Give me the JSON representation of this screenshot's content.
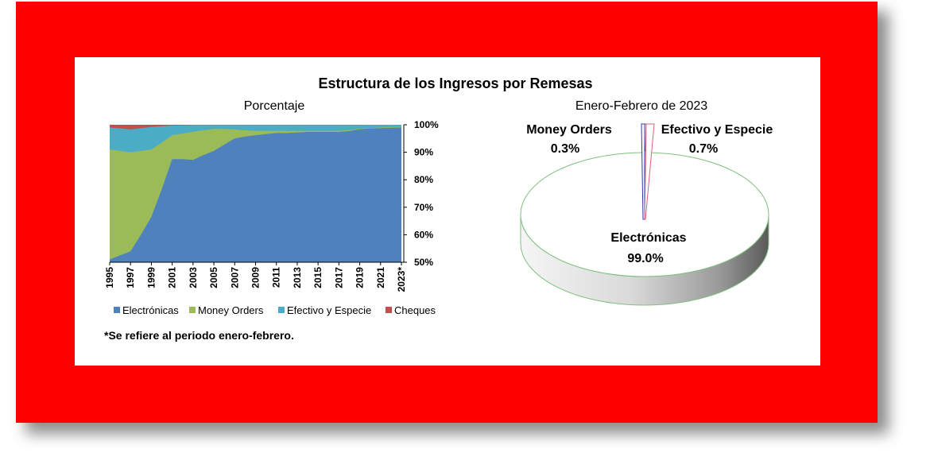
{
  "page": {
    "main_title": "Estructura de los Ingresos por Remesas",
    "footnote": "*Se refiere al periodo enero-febrero.",
    "frame_color": "#ff0000"
  },
  "chart_data": [
    {
      "type": "area",
      "title": "Porcentaje",
      "x": [
        "1995",
        "1996",
        "1997",
        "1998",
        "1999",
        "2000",
        "2001",
        "2002",
        "2003",
        "2004",
        "2005",
        "2006",
        "2007",
        "2008",
        "2009",
        "2010",
        "2011",
        "2012",
        "2013",
        "2014",
        "2015",
        "2016",
        "2017",
        "2018",
        "2019",
        "2020",
        "2021",
        "2022",
        "2023*"
      ],
      "x_tick_labels": [
        "1995",
        "1997",
        "1999",
        "2001",
        "2003",
        "2005",
        "2007",
        "2009",
        "2011",
        "2013",
        "2015",
        "2017",
        "2019",
        "2021",
        "2023*"
      ],
      "stacked_cumulative": true,
      "ylim": [
        50,
        100
      ],
      "y_tick_labels": [
        "50%",
        "60%",
        "70%",
        "80%",
        "90%",
        "100%"
      ],
      "series": [
        {
          "name": "Electrónicas",
          "color": "#4f81bd",
          "values": [
            51,
            52.5,
            54,
            60,
            66.5,
            76.5,
            87.5,
            87.5,
            87.2,
            89,
            90.5,
            92.8,
            95,
            95.7,
            96.2,
            96.6,
            97,
            97,
            97.2,
            97.4,
            97.4,
            97.4,
            97.4,
            97.7,
            98.4,
            98.6,
            98.8,
            98.9,
            99
          ]
        },
        {
          "name": "Money Orders",
          "color": "#9bbb59",
          "values": [
            91,
            90.5,
            90,
            90.5,
            91,
            93.5,
            96.2,
            96.8,
            97.5,
            98,
            98.5,
            98.5,
            98.3,
            98,
            97.8,
            97.8,
            97.8,
            97.8,
            97.8,
            97.8,
            97.8,
            97.8,
            97.8,
            98,
            98.6,
            98.8,
            99,
            99.2,
            99.3
          ]
        },
        {
          "name": "Efectivo y Especie",
          "color": "#4bacc6",
          "values": [
            99,
            98.7,
            98.3,
            98.8,
            99.2,
            99.5,
            99.7,
            99.8,
            99.9,
            99.9,
            99.9,
            99.9,
            99.9,
            99.9,
            99.9,
            99.9,
            99.9,
            99.9,
            99.9,
            99.9,
            99.9,
            99.9,
            99.9,
            99.9,
            99.9,
            100,
            100,
            100,
            100
          ]
        },
        {
          "name": "Cheques",
          "color": "#c0504d",
          "values": [
            100,
            100,
            100,
            100,
            100,
            100,
            100,
            100,
            100,
            100,
            100,
            100,
            100,
            100,
            100,
            100,
            100,
            100,
            100,
            100,
            100,
            100,
            100,
            100,
            100,
            100,
            100,
            100,
            100
          ]
        }
      ],
      "legend": "bottom",
      "grid": false
    },
    {
      "type": "pie",
      "title": "Enero-Febrero de 2023",
      "slices": [
        {
          "name": "Electrónicas",
          "value": 99.0,
          "label": "99.0%"
        },
        {
          "name": "Money Orders",
          "value": 0.3,
          "label": "0.3%"
        },
        {
          "name": "Efectivo y Especie",
          "value": 0.7,
          "label": "0.7%"
        }
      ]
    }
  ]
}
